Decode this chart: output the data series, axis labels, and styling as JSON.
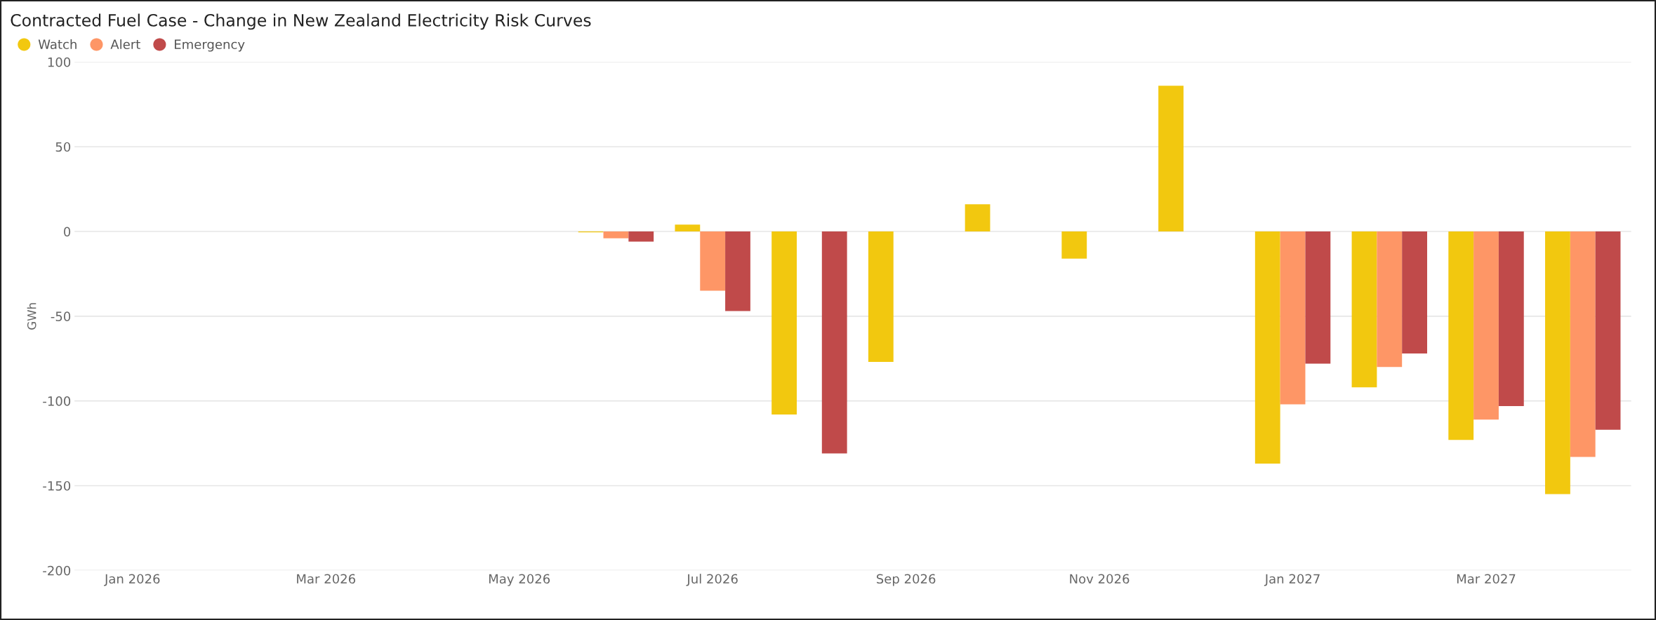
{
  "chart_data": {
    "type": "bar",
    "title": "Contracted Fuel Case - Change in New Zealand Electricity Risk Curves",
    "ylabel": "GWh",
    "categories": [
      "Jan 2026",
      null,
      "Mar 2026",
      null,
      "May 2026",
      null,
      "Jul 2026",
      null,
      "Sep 2026",
      null,
      "Nov 2026",
      null,
      "Jan 2027",
      null,
      "Mar 2027",
      null
    ],
    "series": [
      {
        "name": "Watch",
        "color": "#f2c80f",
        "values": [
          null,
          null,
          null,
          null,
          null,
          -0.5,
          4,
          -108,
          -77,
          16,
          -16,
          86,
          -137,
          -92,
          -123,
          -155
        ]
      },
      {
        "name": "Alert",
        "color": "#fe9666",
        "values": [
          null,
          null,
          null,
          null,
          null,
          -4,
          -35,
          null,
          null,
          null,
          null,
          null,
          -102,
          -80,
          -111,
          -133
        ]
      },
      {
        "name": "Emergency",
        "color": "#c04a4a",
        "values": [
          null,
          null,
          null,
          null,
          null,
          -6,
          -47,
          -131,
          null,
          null,
          null,
          null,
          -78,
          -72,
          -103,
          -117
        ]
      }
    ],
    "ylim": [
      -200,
      100
    ],
    "yticks": [
      -200,
      -150,
      -100,
      -50,
      0,
      50,
      100
    ],
    "grid": "y",
    "legend": "top left"
  }
}
